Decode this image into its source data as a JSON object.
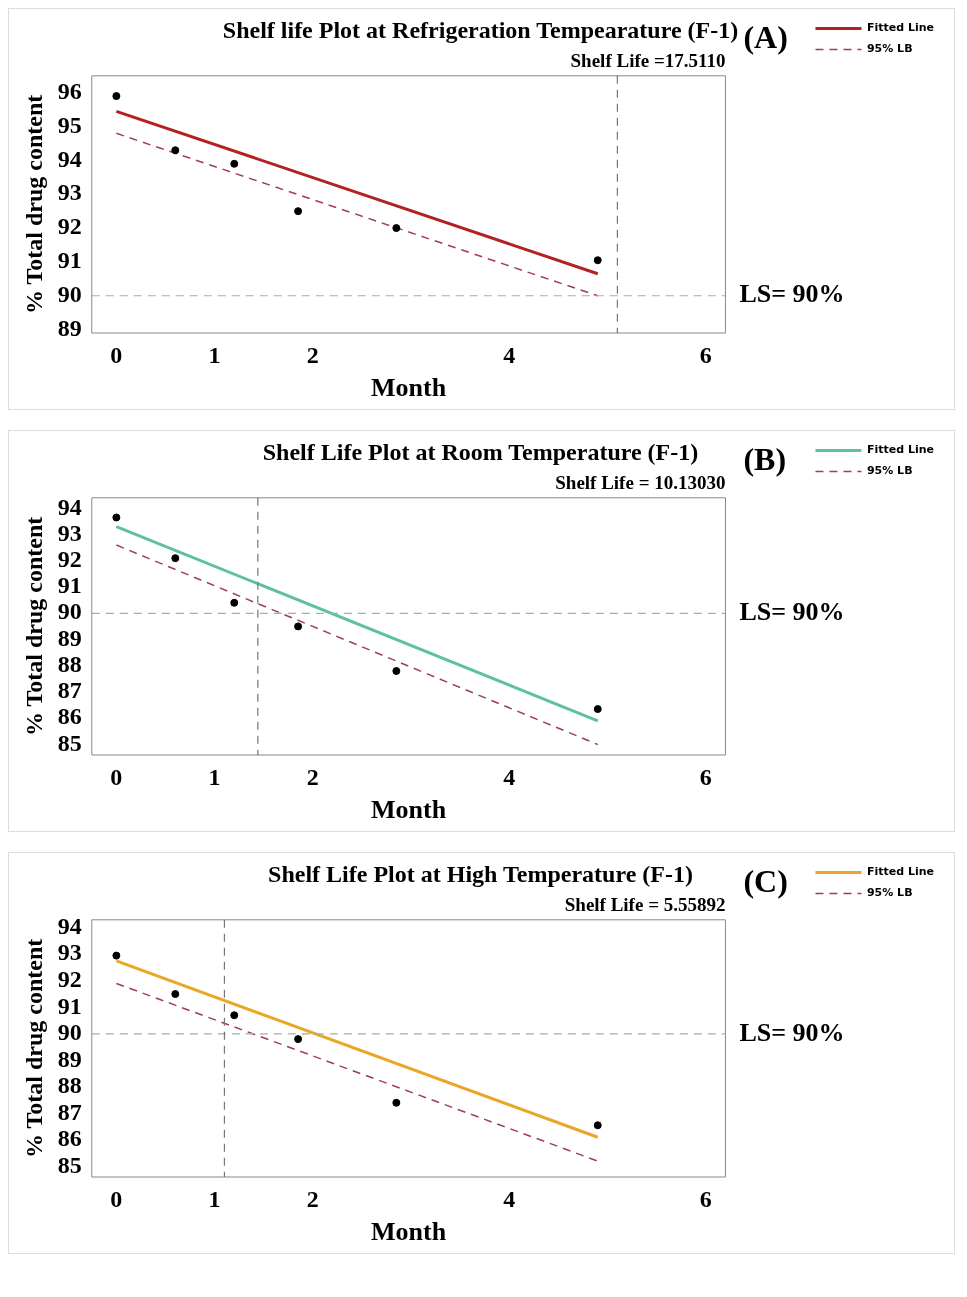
{
  "chart_data": [
    {
      "type": "line",
      "title": "Shelf life Plot at Refrigeration Tempearature (F-1)",
      "xlabel": "Month",
      "ylabel": "% Total drug content",
      "annotations": [
        "Shelf Life =17.5110",
        "(A)"
      ],
      "xlim": [
        -0.25,
        6.2
      ],
      "xticks": [
        0,
        1,
        2,
        4,
        6
      ],
      "ylim": [
        88.9,
        96.5
      ],
      "yticks": [
        89,
        90,
        91,
        92,
        93,
        94,
        95,
        96
      ],
      "grid": false,
      "legend": "top right",
      "ref_lines": [
        {
          "axis": "y",
          "value": 90,
          "label": "LS= 90%",
          "color": "#aaaaaa",
          "line_style": "dashed"
        },
        {
          "axis": "x",
          "value": 5.1,
          "color": "#777777",
          "line_style": "dashed"
        }
      ],
      "series": [
        {
          "name": "Fitted Line",
          "type": "line",
          "color": "#b22222",
          "x": [
            0,
            4.9
          ],
          "values": [
            95.45,
            90.65
          ],
          "line_style": "solid",
          "marker": "none"
        },
        {
          "name": "95% LB",
          "type": "line",
          "color": "#a0404a",
          "x": [
            0,
            4.9
          ],
          "values": [
            94.8,
            90.0
          ],
          "line_style": "dashed",
          "marker": "none"
        },
        {
          "type": "scatter",
          "color": "#000000",
          "x": [
            0,
            0.6,
            1.2,
            1.85,
            2.85,
            4.9
          ],
          "values": [
            95.9,
            94.3,
            93.9,
            92.5,
            92.0,
            91.05
          ],
          "marker": "circle"
        }
      ]
    },
    {
      "type": "line",
      "title": "Shelf Life Plot at Room Temperature (F-1)",
      "xlabel": "Month",
      "ylabel": "% Total drug content",
      "annotations": [
        "Shelf Life = 10.13030",
        "(B)"
      ],
      "xlim": [
        -0.25,
        6.2
      ],
      "xticks": [
        0,
        1,
        2,
        4,
        6
      ],
      "ylim": [
        84.6,
        94.4
      ],
      "yticks": [
        85,
        86,
        87,
        88,
        89,
        90,
        91,
        92,
        93,
        94
      ],
      "grid": false,
      "legend": "top right",
      "ref_lines": [
        {
          "axis": "y",
          "value": 90,
          "label": "LS= 90%",
          "color": "#aaaaaa",
          "line_style": "dashed"
        },
        {
          "axis": "x",
          "value": 1.44,
          "color": "#777777",
          "line_style": "dashed"
        }
      ],
      "series": [
        {
          "name": "Fitted Line",
          "type": "line",
          "color": "#5fbfa6",
          "x": [
            0,
            4.9
          ],
          "values": [
            93.3,
            85.9
          ],
          "line_style": "solid",
          "marker": "none"
        },
        {
          "name": "95% LB",
          "type": "line",
          "color": "#a0404a",
          "x": [
            0,
            4.9
          ],
          "values": [
            92.6,
            85.0
          ],
          "line_style": "dashed",
          "marker": "none"
        },
        {
          "type": "scatter",
          "color": "#000000",
          "x": [
            0,
            0.6,
            1.2,
            1.85,
            2.85,
            4.9
          ],
          "values": [
            93.65,
            92.1,
            90.4,
            89.5,
            87.8,
            86.35
          ],
          "marker": "circle"
        }
      ]
    },
    {
      "type": "line",
      "title": "Shelf Life Plot at High Temperature (F-1)",
      "xlabel": "Month",
      "ylabel": "% Total drug content",
      "annotations": [
        "Shelf Life = 5.55892",
        "(C)"
      ],
      "xlim": [
        -0.25,
        6.2
      ],
      "xticks": [
        0,
        1,
        2,
        4,
        6
      ],
      "ylim": [
        84.6,
        94.3
      ],
      "yticks": [
        85,
        86,
        87,
        88,
        89,
        90,
        91,
        92,
        93,
        94
      ],
      "grid": false,
      "legend": "top right",
      "ref_lines": [
        {
          "axis": "y",
          "value": 90,
          "label": "LS= 90%",
          "color": "#aaaaaa",
          "line_style": "dashed"
        },
        {
          "axis": "x",
          "value": 1.1,
          "color": "#777777",
          "line_style": "dashed"
        }
      ],
      "series": [
        {
          "name": "Fitted Line",
          "type": "line",
          "color": "#e8a825",
          "x": [
            0,
            4.9
          ],
          "values": [
            92.75,
            86.1
          ],
          "line_style": "solid",
          "marker": "none"
        },
        {
          "name": "95% LB",
          "type": "line",
          "color": "#a0404a",
          "x": [
            0,
            4.9
          ],
          "values": [
            91.9,
            85.2
          ],
          "line_style": "dashed",
          "marker": "none"
        },
        {
          "type": "scatter",
          "color": "#000000",
          "x": [
            0,
            0.6,
            1.2,
            1.85,
            2.85,
            4.9
          ],
          "values": [
            92.95,
            91.5,
            90.7,
            89.8,
            87.4,
            86.55
          ],
          "marker": "circle"
        }
      ]
    }
  ]
}
